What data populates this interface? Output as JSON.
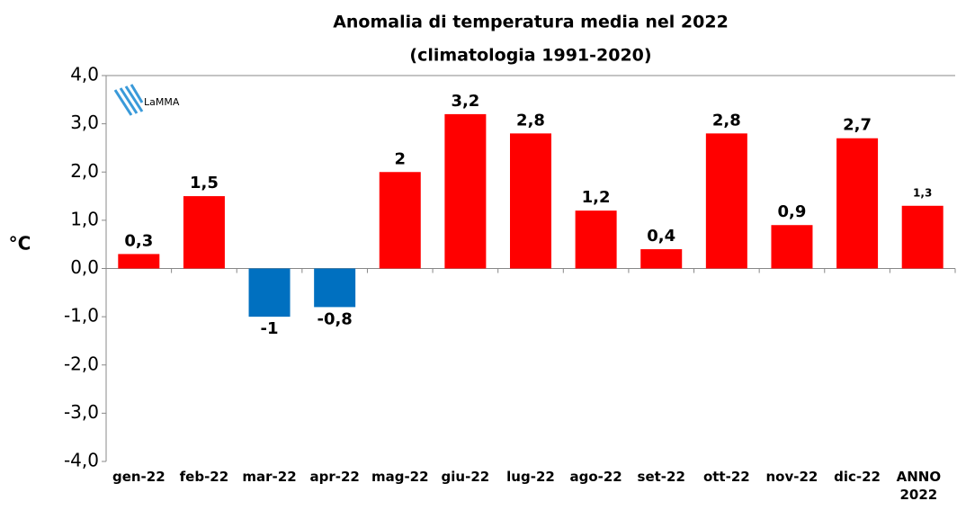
{
  "chart_data": {
    "type": "bar",
    "title": "Anomalia di temperatura media nel 2022",
    "subtitle": "(climatologia 1991-2020)",
    "ylabel": "°C",
    "logo": "LaMMA",
    "categories": [
      "gen-22",
      "feb-22",
      "mar-22",
      "apr-22",
      "mag-22",
      "giu-22",
      "lug-22",
      "ago-22",
      "set-22",
      "ott-22",
      "nov-22",
      "dic-22",
      "ANNO 2022"
    ],
    "values": [
      0.3,
      1.5,
      -1,
      -0.8,
      2,
      3.2,
      2.8,
      1.2,
      0.4,
      2.8,
      0.9,
      2.7,
      1.3
    ],
    "value_labels": [
      "0,3",
      "1,5",
      "-1",
      "-0,8",
      "2",
      "3,2",
      "2,8",
      "1,2",
      "0,4",
      "2,8",
      "0,9",
      "2,7",
      "1,3"
    ],
    "colors": [
      "#ff0000",
      "#ff0000",
      "#0070c0",
      "#0070c0",
      "#ff0000",
      "#ff0000",
      "#ff0000",
      "#ff0000",
      "#ff0000",
      "#ff0000",
      "#ff0000",
      "#ff0000",
      "#ff0000"
    ],
    "ylim": [
      -4,
      4
    ],
    "yticks": [
      {
        "value": -4,
        "label": "-4,0"
      },
      {
        "value": -3,
        "label": "-3,0"
      },
      {
        "value": -2,
        "label": "-2,0"
      },
      {
        "value": -1,
        "label": "-1,0"
      },
      {
        "value": 0,
        "label": "0,0"
      },
      {
        "value": 1,
        "label": "1,0"
      },
      {
        "value": 2,
        "label": "2,0"
      },
      {
        "value": 3,
        "label": "3,0"
      },
      {
        "value": 4,
        "label": "4,0"
      }
    ],
    "grid": false
  }
}
